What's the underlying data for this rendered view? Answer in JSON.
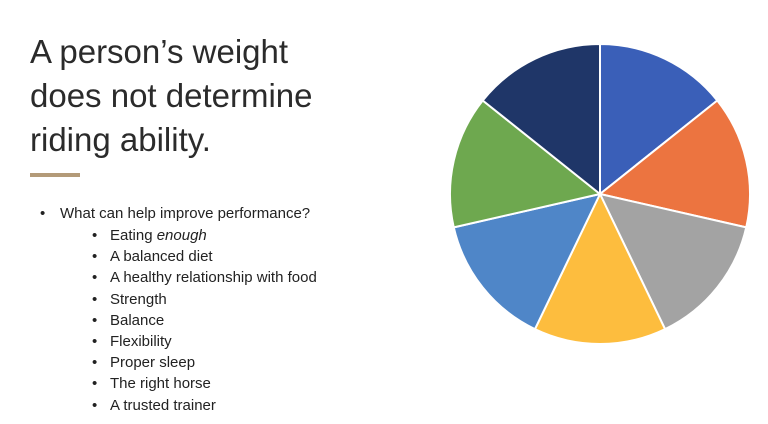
{
  "slide": {
    "title_lines": [
      "A person’s weight",
      "does not determine",
      "riding ability."
    ],
    "accent_color": "#b39a78",
    "bullet": "What can help improve performance?",
    "subitems": [
      {
        "prefix": "Eating ",
        "emphasis": "enough",
        "suffix": ""
      },
      {
        "prefix": "A balanced diet",
        "emphasis": "",
        "suffix": ""
      },
      {
        "prefix": "A healthy relationship with food",
        "emphasis": "",
        "suffix": ""
      },
      {
        "prefix": "Strength",
        "emphasis": "",
        "suffix": ""
      },
      {
        "prefix": "Balance",
        "emphasis": "",
        "suffix": ""
      },
      {
        "prefix": "Flexibility",
        "emphasis": "",
        "suffix": ""
      },
      {
        "prefix": "Proper sleep",
        "emphasis": "",
        "suffix": ""
      },
      {
        "prefix": "The right horse",
        "emphasis": "",
        "suffix": ""
      },
      {
        "prefix": "A trusted trainer",
        "emphasis": "",
        "suffix": ""
      }
    ]
  },
  "chart_data": {
    "type": "pie",
    "values": [
      1,
      1,
      1,
      1,
      1,
      1,
      1
    ],
    "colors": [
      "#3a5fb8",
      "#ec7440",
      "#a3a3a3",
      "#fdbd3e",
      "#4f86c8",
      "#6ea84f",
      "#1f3668"
    ]
  }
}
